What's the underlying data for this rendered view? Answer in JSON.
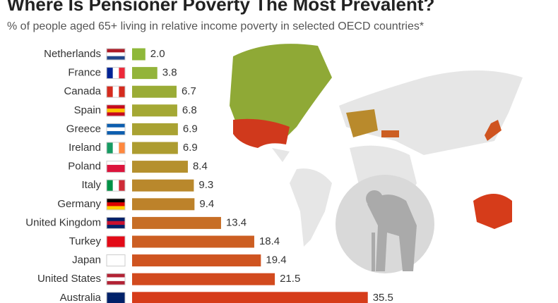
{
  "chart_data": {
    "type": "bar",
    "title": "Where Is Pensioner Poverty The Most Prevalent?",
    "subtitle": "% of people aged 65+ living in relative income poverty in selected OECD countries*",
    "categories": [
      "Netherlands",
      "France",
      "Canada",
      "Spain",
      "Greece",
      "Ireland",
      "Poland",
      "Italy",
      "Germany",
      "United Kingdom",
      "Turkey",
      "Japan",
      "United States",
      "Australia"
    ],
    "values": [
      2.0,
      3.8,
      6.7,
      6.8,
      6.9,
      6.9,
      8.4,
      9.3,
      9.4,
      13.4,
      18.4,
      19.4,
      21.5,
      35.5
    ],
    "value_labels": [
      "2.0",
      "3.8",
      "6.7",
      "6.8",
      "6.9",
      "6.9",
      "8.4",
      "9.3",
      "9.4",
      "13.4",
      "18.4",
      "19.4",
      "21.5",
      "35.5"
    ],
    "colors": [
      "#8fb83a",
      "#93b43a",
      "#9aac36",
      "#a4a834",
      "#a9a232",
      "#ad9c30",
      "#b5902e",
      "#b9882c",
      "#bd822a",
      "#c76e26",
      "#cc5e22",
      "#cf5420",
      "#d24a1e",
      "#d63c1a"
    ]
  }
}
